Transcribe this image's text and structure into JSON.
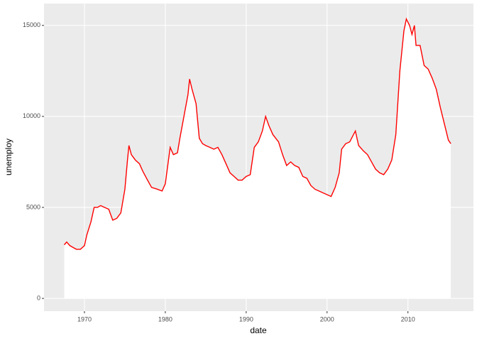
{
  "chart_data": {
    "type": "area",
    "xlabel": "date",
    "ylabel": "unemploy",
    "color": "#ff0000",
    "fill": "#ffffff",
    "background": "#ebebeb",
    "grid": true,
    "xlim": [
      1965.0,
      2018.1
    ],
    "ylim": [
      -700,
      16200
    ],
    "xticks": [
      1970,
      1980,
      1990,
      2000,
      2010
    ],
    "yticks": [
      0,
      5000,
      10000,
      15000
    ],
    "x": [
      1967.5,
      1967.8,
      1968.2,
      1968.6,
      1969.0,
      1969.5,
      1970.0,
      1970.3,
      1970.8,
      1971.2,
      1971.6,
      1972.0,
      1972.5,
      1973.0,
      1973.5,
      1974.0,
      1974.5,
      1975.0,
      1975.3,
      1975.5,
      1975.8,
      1976.3,
      1976.8,
      1977.2,
      1977.8,
      1978.3,
      1979.0,
      1979.6,
      1980.0,
      1980.3,
      1980.6,
      1981.0,
      1981.5,
      1981.8,
      1982.3,
      1982.8,
      1983.0,
      1983.3,
      1983.8,
      1984.2,
      1984.6,
      1985.0,
      1985.5,
      1986.0,
      1986.5,
      1987.0,
      1987.5,
      1988.0,
      1988.5,
      1989.0,
      1989.5,
      1990.0,
      1990.5,
      1991.0,
      1991.5,
      1992.0,
      1992.4,
      1992.8,
      1993.3,
      1994.0,
      1994.5,
      1995.0,
      1995.5,
      1996.0,
      1996.5,
      1997.0,
      1997.5,
      1998.0,
      1998.5,
      1999.0,
      1999.5,
      2000.0,
      2000.5,
      2001.0,
      2001.5,
      2001.8,
      2002.3,
      2002.8,
      2003.5,
      2003.9,
      2004.5,
      2005.0,
      2005.5,
      2006.0,
      2006.5,
      2007.0,
      2007.5,
      2008.0,
      2008.5,
      2009.0,
      2009.5,
      2009.8,
      2010.2,
      2010.5,
      2010.8,
      2011.0,
      2011.5,
      2012.0,
      2012.5,
      2013.0,
      2013.5,
      2014.0,
      2014.5,
      2015.0,
      2015.3
    ],
    "values": [
      2944,
      3100,
      2900,
      2800,
      2700,
      2700,
      2900,
      3500,
      4200,
      5000,
      5000,
      5100,
      5000,
      4900,
      4300,
      4400,
      4700,
      6000,
      7500,
      8400,
      7900,
      7600,
      7400,
      7000,
      6500,
      6100,
      6000,
      5900,
      6300,
      7300,
      8300,
      7900,
      8000,
      8800,
      10000,
      11200,
      12051,
      11500,
      10700,
      8800,
      8500,
      8400,
      8300,
      8200,
      8300,
      7900,
      7400,
      6900,
      6700,
      6500,
      6500,
      6700,
      6800,
      8300,
      8600,
      9200,
      10000,
      9500,
      9000,
      8600,
      7900,
      7300,
      7500,
      7300,
      7200,
      6700,
      6600,
      6200,
      6000,
      5900,
      5800,
      5700,
      5600,
      6100,
      6900,
      8200,
      8500,
      8600,
      9200,
      8400,
      8100,
      7900,
      7500,
      7100,
      6900,
      6800,
      7100,
      7600,
      9000,
      12500,
      14700,
      15352,
      15000,
      14500,
      15000,
      13900,
      13900,
      12800,
      12600,
      12100,
      11500,
      10500,
      9600,
      8700,
      8500
    ]
  }
}
